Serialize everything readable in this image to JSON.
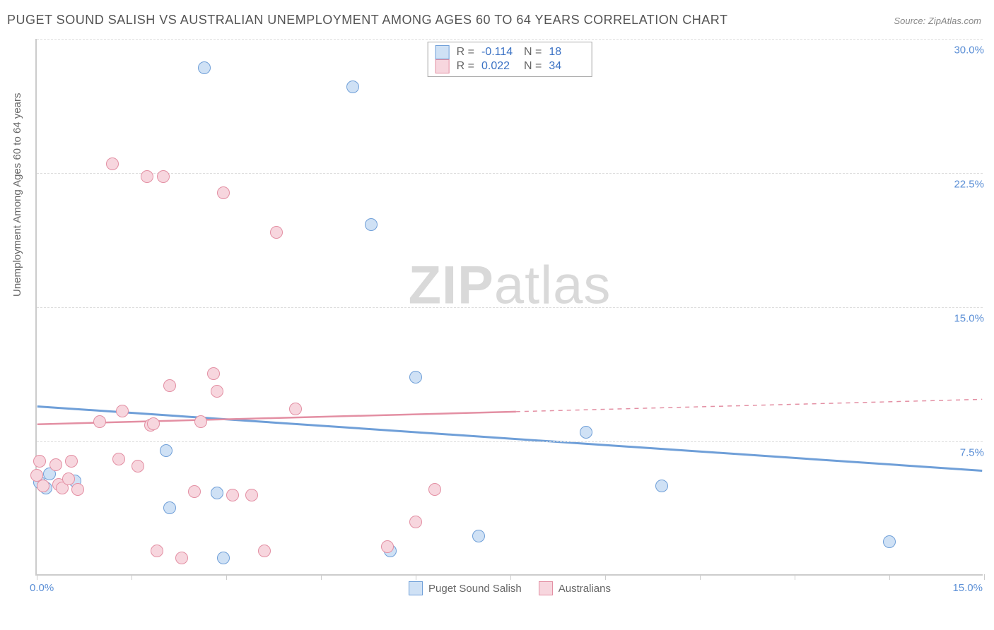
{
  "title": "PUGET SOUND SALISH VS AUSTRALIAN UNEMPLOYMENT AMONG AGES 60 TO 64 YEARS CORRELATION CHART",
  "source": "Source: ZipAtlas.com",
  "y_axis_title": "Unemployment Among Ages 60 to 64 years",
  "watermark_bold": "ZIP",
  "watermark_light": "atlas",
  "chart": {
    "type": "scatter",
    "xlim": [
      0,
      15
    ],
    "ylim": [
      0,
      30
    ],
    "x_ticks": [
      0,
      1.5,
      3.0,
      4.5,
      6.0,
      7.5,
      9.0,
      10.5,
      12.0,
      13.5,
      15.0
    ],
    "y_gridlines": [
      7.5,
      15.0,
      22.5,
      30.0
    ],
    "x_label_min": "0.0%",
    "x_label_max": "15.0%",
    "y_labels": [
      {
        "v": 7.5,
        "t": "7.5%"
      },
      {
        "v": 15.0,
        "t": "15.0%"
      },
      {
        "v": 22.5,
        "t": "22.5%"
      },
      {
        "v": 30.0,
        "t": "30.0%"
      }
    ],
    "background_color": "#ffffff",
    "grid_color": "#dddddd",
    "axis_color": "#cccccc",
    "marker_radius": 9,
    "marker_stroke_width": 1.5
  },
  "series": [
    {
      "name": "Puget Sound Salish",
      "fill": "#cfe1f5",
      "stroke": "#6f9fd8",
      "r_value": "-0.114",
      "n_value": "18",
      "regression": {
        "y_at_x0": 9.4,
        "y_at_xmax": 5.8,
        "solid_until_x": 15.0
      },
      "points": [
        {
          "x": 0.05,
          "y": 5.2
        },
        {
          "x": 0.1,
          "y": 5.0
        },
        {
          "x": 0.15,
          "y": 4.9
        },
        {
          "x": 0.2,
          "y": 5.7
        },
        {
          "x": 0.6,
          "y": 5.3
        },
        {
          "x": 2.05,
          "y": 7.0
        },
        {
          "x": 2.1,
          "y": 3.8
        },
        {
          "x": 2.65,
          "y": 28.4
        },
        {
          "x": 2.85,
          "y": 4.6
        },
        {
          "x": 2.95,
          "y": 1.0
        },
        {
          "x": 5.0,
          "y": 27.3
        },
        {
          "x": 5.3,
          "y": 19.6
        },
        {
          "x": 5.6,
          "y": 1.4
        },
        {
          "x": 6.0,
          "y": 11.1
        },
        {
          "x": 7.0,
          "y": 2.2
        },
        {
          "x": 8.7,
          "y": 8.0
        },
        {
          "x": 9.9,
          "y": 5.0
        },
        {
          "x": 13.5,
          "y": 1.9
        }
      ]
    },
    {
      "name": "Australians",
      "fill": "#f7d6de",
      "stroke": "#e38fa3",
      "r_value": "0.022",
      "n_value": "34",
      "regression": {
        "y_at_x0": 8.4,
        "y_at_xmax": 9.8,
        "solid_until_x": 7.6
      },
      "points": [
        {
          "x": 0.0,
          "y": 5.6
        },
        {
          "x": 0.05,
          "y": 6.4
        },
        {
          "x": 0.1,
          "y": 5.0
        },
        {
          "x": 0.3,
          "y": 6.2
        },
        {
          "x": 0.35,
          "y": 5.1
        },
        {
          "x": 0.4,
          "y": 4.9
        },
        {
          "x": 0.5,
          "y": 5.4
        },
        {
          "x": 0.55,
          "y": 6.4
        },
        {
          "x": 0.65,
          "y": 4.8
        },
        {
          "x": 1.0,
          "y": 8.6
        },
        {
          "x": 1.2,
          "y": 23.0
        },
        {
          "x": 1.3,
          "y": 6.5
        },
        {
          "x": 1.35,
          "y": 9.2
        },
        {
          "x": 1.6,
          "y": 6.1
        },
        {
          "x": 1.75,
          "y": 22.3
        },
        {
          "x": 1.8,
          "y": 8.4
        },
        {
          "x": 1.85,
          "y": 8.5
        },
        {
          "x": 1.9,
          "y": 1.4
        },
        {
          "x": 2.0,
          "y": 22.3
        },
        {
          "x": 2.1,
          "y": 10.6
        },
        {
          "x": 2.3,
          "y": 1.0
        },
        {
          "x": 2.5,
          "y": 4.7
        },
        {
          "x": 2.6,
          "y": 8.6
        },
        {
          "x": 2.95,
          "y": 21.4
        },
        {
          "x": 2.8,
          "y": 11.3
        },
        {
          "x": 2.85,
          "y": 10.3
        },
        {
          "x": 3.1,
          "y": 4.5
        },
        {
          "x": 3.4,
          "y": 4.5
        },
        {
          "x": 3.6,
          "y": 1.4
        },
        {
          "x": 3.8,
          "y": 19.2
        },
        {
          "x": 4.1,
          "y": 9.3
        },
        {
          "x": 5.55,
          "y": 1.6
        },
        {
          "x": 6.0,
          "y": 3.0
        },
        {
          "x": 6.3,
          "y": 4.8
        }
      ]
    }
  ],
  "legend": {
    "r_label": "R =",
    "n_label": "N ="
  }
}
